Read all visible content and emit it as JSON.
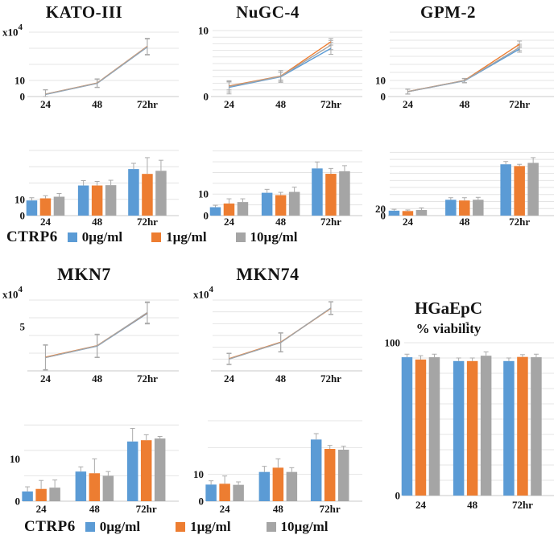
{
  "colors": {
    "series": [
      "#5B9BD5",
      "#ED7D31",
      "#A5A5A5"
    ],
    "gridline": "#E4E4E4",
    "axis": "#C8C8C8",
    "error_bar": "#ABABAB",
    "text": "#141414"
  },
  "legend": {
    "prefix": "CTRP6",
    "items": [
      {
        "label": "0µg/ml",
        "color": "#5B9BD5"
      },
      {
        "label": "1µg/ml",
        "color": "#ED7D31"
      },
      {
        "label": "10µg/ml",
        "color": "#A5A5A5"
      }
    ]
  },
  "chart_data": {
    "kato3_line": {
      "type": "line",
      "title": "KATO-III",
      "unit": "x10",
      "unit_exp": "4",
      "categories": [
        "24",
        "48",
        "72hr"
      ],
      "ylim": [
        0,
        41
      ],
      "grid_step": 10,
      "yticks": [
        {
          "v": 0,
          "label": "0"
        },
        {
          "v": 10,
          "label": "10"
        }
      ],
      "series": [
        {
          "name": "0µg/ml",
          "values": [
            1.3,
            8.2,
            30.8
          ],
          "err": [
            2.8,
            2.6,
            5.0
          ]
        },
        {
          "name": "1µg/ml",
          "values": [
            1.5,
            8.4,
            31.2
          ],
          "err": [
            2.8,
            2.6,
            5.0
          ]
        },
        {
          "name": "10µg/ml",
          "values": [
            1.4,
            8.3,
            31.0
          ],
          "err": [
            2.8,
            2.6,
            5.0
          ]
        }
      ]
    },
    "nugc4_line": {
      "type": "line",
      "title": "NuGC-4",
      "categories": [
        "24",
        "48",
        "72hr"
      ],
      "ylim": [
        0,
        10
      ],
      "grid_step": 1,
      "yticks": [
        {
          "v": 0,
          "label": "0"
        },
        {
          "v": 10,
          "label": "10"
        }
      ],
      "series": [
        {
          "name": "0µg/ml",
          "values": [
            1.4,
            3.0,
            7.3
          ],
          "err": [
            1.0,
            0.7,
            0.9
          ]
        },
        {
          "name": "1µg/ml",
          "values": [
            1.6,
            3.1,
            8.3
          ],
          "err": [
            0.6,
            0.6,
            0.5
          ]
        },
        {
          "name": "10µg/ml",
          "values": [
            1.5,
            3.05,
            7.8
          ],
          "err": [
            0.8,
            0.9,
            0.7
          ]
        }
      ]
    },
    "gpm2_line": {
      "type": "line",
      "title": "GPM-2",
      "categories": [
        "24",
        "48",
        "72hr"
      ],
      "ylim": [
        0,
        41
      ],
      "grid_step": 5,
      "yticks": [
        {
          "v": 0,
          "label": "0"
        },
        {
          "v": 10,
          "label": "10"
        }
      ],
      "series": [
        {
          "name": "0µg/ml",
          "values": [
            3.0,
            9.8,
            29.5
          ],
          "err": [
            1.5,
            1.3,
            2.0
          ]
        },
        {
          "name": "1µg/ml",
          "values": [
            3.1,
            10.0,
            32.5
          ],
          "err": [
            1.5,
            1.3,
            2.0
          ]
        },
        {
          "name": "10µg/ml",
          "values": [
            3.05,
            9.9,
            30.5
          ],
          "err": [
            1.5,
            1.3,
            2.0
          ]
        }
      ]
    },
    "kato3_bar": {
      "type": "bar",
      "categories": [
        "24",
        "48",
        "72hr"
      ],
      "ylim": [
        0,
        41
      ],
      "grid_step": 10,
      "yticks": [
        {
          "v": 0,
          "label": "0"
        },
        {
          "v": 10,
          "label": "10"
        }
      ],
      "series": [
        {
          "name": "0µg/ml",
          "values": [
            9.3,
            18.5,
            28.6
          ],
          "err": [
            1.7,
            3.0,
            3.5
          ]
        },
        {
          "name": "1µg/ml",
          "values": [
            10.6,
            18.5,
            25.6
          ],
          "err": [
            1.6,
            2.5,
            10.0
          ]
        },
        {
          "name": "10µg/ml",
          "values": [
            11.6,
            18.7,
            27.5
          ],
          "err": [
            2.0,
            3.0,
            6.5
          ]
        }
      ]
    },
    "nugc4_bar": {
      "type": "bar",
      "categories": [
        "24",
        "48",
        "72hr"
      ],
      "ylim": [
        0,
        31
      ],
      "grid_step": 5,
      "yticks": [
        {
          "v": 0,
          "label": "0"
        },
        {
          "v": 10,
          "label": "10"
        }
      ],
      "series": [
        {
          "name": "0µg/ml",
          "values": [
            3.9,
            10.6,
            21.9
          ],
          "err": [
            0.9,
            1.6,
            3.0
          ]
        },
        {
          "name": "1µg/ml",
          "values": [
            5.6,
            9.5,
            19.4
          ],
          "err": [
            2.2,
            1.3,
            2.5
          ]
        },
        {
          "name": "10µg/ml",
          "values": [
            6.3,
            11.0,
            20.6
          ],
          "err": [
            1.5,
            2.2,
            2.6
          ]
        }
      ]
    },
    "gpm2_bar": {
      "type": "bar",
      "categories": [
        "24",
        "48",
        "72hr"
      ],
      "ylim": [
        0,
        190
      ],
      "grid_step": 20,
      "yticks": [
        {
          "v": 0,
          "label": "0"
        },
        {
          "v": 20,
          "label": "20"
        }
      ],
      "series": [
        {
          "name": "0µg/ml",
          "values": [
            14,
            45,
            146
          ],
          "err": [
            4,
            6,
            8
          ]
        },
        {
          "name": "1µg/ml",
          "values": [
            13,
            43,
            141
          ],
          "err": [
            3,
            8,
            5
          ]
        },
        {
          "name": "10µg/ml",
          "values": [
            16,
            45,
            150
          ],
          "err": [
            6,
            7,
            15
          ]
        }
      ]
    },
    "mkn7_line": {
      "type": "line",
      "title": "MKN7",
      "unit": "x10",
      "unit_exp": "4",
      "categories": [
        "24",
        "48",
        "72hr"
      ],
      "ylim": [
        0,
        8
      ],
      "grid_step": 2,
      "yticks": [
        {
          "v": 5,
          "label": "5"
        }
      ],
      "series": [
        {
          "name": "0µg/ml",
          "values": [
            1.5,
            2.8,
            6.5
          ],
          "err": [
            1.4,
            1.3,
            1.2
          ]
        },
        {
          "name": "1µg/ml",
          "values": [
            1.55,
            2.85,
            6.55
          ],
          "err": [
            1.4,
            1.3,
            1.2
          ]
        },
        {
          "name": "10µg/ml",
          "values": [
            1.5,
            2.82,
            6.6
          ],
          "err": [
            1.4,
            1.3,
            1.2
          ]
        }
      ]
    },
    "mkn74_line": {
      "type": "line",
      "title": "MKN74",
      "unit": "x10",
      "unit_exp": "4",
      "categories": [
        "24",
        "48",
        "72hr"
      ],
      "ylim": [
        0,
        9
      ],
      "grid_step": 1.5,
      "yticks": [],
      "series": [
        {
          "name": "0µg/ml",
          "values": [
            1.5,
            3.6,
            8.0
          ],
          "err": [
            0.7,
            1.2,
            0.8
          ]
        },
        {
          "name": "1µg/ml",
          "values": [
            1.55,
            3.65,
            7.95
          ],
          "err": [
            0.7,
            1.2,
            0.8
          ]
        },
        {
          "name": "10µg/ml",
          "values": [
            1.5,
            3.6,
            8.0
          ],
          "err": [
            0.7,
            1.2,
            0.8
          ]
        }
      ]
    },
    "hgaepc_bar": {
      "type": "bar",
      "title": "HGaEpC",
      "subtitle": "% viability",
      "subtitle_mark": "-",
      "categories": [
        "24",
        "48",
        "72hr"
      ],
      "ylim": [
        0,
        100
      ],
      "grid_step": 10,
      "yticks": [
        {
          "v": 0,
          "label": "0"
        },
        {
          "v": 100,
          "label": "100"
        }
      ],
      "series": [
        {
          "name": "0µg/ml",
          "values": [
            90.5,
            88.0,
            88.0
          ],
          "err": [
            2.0,
            2.0,
            2.0
          ]
        },
        {
          "name": "1µg/ml",
          "values": [
            89.0,
            88.0,
            90.7
          ],
          "err": [
            2.5,
            2.0,
            1.5
          ]
        },
        {
          "name": "10µg/ml",
          "values": [
            90.5,
            91.5,
            90.5
          ],
          "err": [
            2.0,
            2.5,
            2.0
          ]
        }
      ]
    },
    "mkn7_bar": {
      "type": "bar",
      "categories": [
        "24",
        "48",
        "72hr"
      ],
      "ylim": [
        0,
        19
      ],
      "grid_step": 6,
      "yticks": [
        {
          "v": 0,
          "label": "0"
        },
        {
          "v": 10,
          "label": "10"
        }
      ],
      "series": [
        {
          "name": "0µg/ml",
          "values": [
            2.3,
            7.0,
            14.1
          ],
          "err": [
            1.1,
            1.1,
            3.1
          ]
        },
        {
          "name": "1µg/ml",
          "values": [
            2.9,
            6.6,
            14.4
          ],
          "err": [
            2.0,
            3.4,
            1.3
          ]
        },
        {
          "name": "10µg/ml",
          "values": [
            3.2,
            6.0,
            14.8
          ],
          "err": [
            1.8,
            1.0,
            0.5
          ]
        }
      ]
    },
    "mkn74_bar": {
      "type": "bar",
      "categories": [
        "24",
        "48",
        "72hr"
      ],
      "ylim": [
        0,
        30
      ],
      "grid_step": 10,
      "yticks": [
        {
          "v": 0,
          "label": "0"
        },
        {
          "v": 10,
          "label": "10"
        }
      ],
      "series": [
        {
          "name": "0µg/ml",
          "values": [
            6.2,
            10.9,
            23.0
          ],
          "err": [
            1.4,
            2.1,
            2.2
          ]
        },
        {
          "name": "1µg/ml",
          "values": [
            6.5,
            12.5,
            19.5
          ],
          "err": [
            2.9,
            3.3,
            1.3
          ]
        },
        {
          "name": "10µg/ml",
          "values": [
            6.1,
            10.9,
            19.2
          ],
          "err": [
            1.1,
            1.6,
            1.3
          ]
        }
      ]
    }
  }
}
